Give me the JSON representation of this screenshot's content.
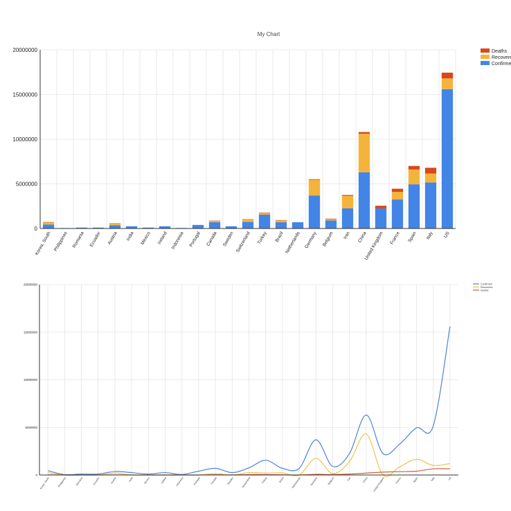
{
  "chart_data": [
    {
      "type": "bar",
      "stacked": true,
      "title": "My Chart",
      "categories": [
        "Korea, South",
        "Philippines",
        "Romania",
        "Ecuador",
        "Austria",
        "India",
        "Mexico",
        "Ireland",
        "Indonesia",
        "Portugal",
        "Canada",
        "Sweden",
        "Switzerland",
        "Turkey",
        "Brazil",
        "Netherlands",
        "Germany",
        "Belgium",
        "Iran",
        "China",
        "United Kingdom",
        "France",
        "Spain",
        "Italy",
        "US"
      ],
      "series": [
        {
          "name": "Confirmed",
          "color": "#4285e6",
          "values": [
            450000,
            50000,
            100000,
            100000,
            370000,
            250000,
            100000,
            250000,
            60000,
            400000,
            700000,
            250000,
            750000,
            1550000,
            700000,
            700000,
            3700000,
            900000,
            2250000,
            6300000,
            2250000,
            3250000,
            4950000,
            5150000,
            15600000
          ]
        },
        {
          "name": "Recovered",
          "color": "#f4b43b",
          "values": [
            250000,
            0,
            0,
            0,
            200000,
            0,
            0,
            0,
            0,
            0,
            150000,
            0,
            250000,
            200000,
            220000,
            0,
            1750000,
            150000,
            1400000,
            4300000,
            0,
            850000,
            1650000,
            1000000,
            1200000
          ]
        },
        {
          "name": "Deaths",
          "color": "#d9481c",
          "values": [
            20000,
            0,
            0,
            0,
            10000,
            0,
            0,
            0,
            0,
            0,
            30000,
            0,
            40000,
            40000,
            20000,
            0,
            70000,
            50000,
            100000,
            200000,
            300000,
            350000,
            400000,
            650000,
            650000
          ]
        }
      ],
      "ylim": [
        0,
        20000000
      ],
      "yticks": [
        "0",
        "5000000",
        "10000000",
        "15000000",
        "20000000"
      ],
      "legend": [
        "Deaths",
        "Recovered",
        "Confirmed"
      ],
      "legend_position": "top-right",
      "grid": true
    },
    {
      "type": "line",
      "smooth": true,
      "categories": [
        "Korea, South",
        "Philippines",
        "Romania",
        "Ecuador",
        "Austria",
        "India",
        "Mexico",
        "Ireland",
        "Indonesia",
        "Portugal",
        "Canada",
        "Sweden",
        "Switzerland",
        "Turkey",
        "Brazil",
        "Netherlands",
        "Germany",
        "Belgium",
        "Iran",
        "China",
        "United Kingdom",
        "France",
        "Spain",
        "Italy",
        "US"
      ],
      "series": [
        {
          "name": "Confirmed",
          "color": "#4a84d6",
          "values": [
            450000,
            50000,
            100000,
            100000,
            370000,
            250000,
            100000,
            250000,
            60000,
            400000,
            700000,
            250000,
            750000,
            1550000,
            700000,
            700000,
            3700000,
            900000,
            2250000,
            6300000,
            2250000,
            3250000,
            4950000,
            5150000,
            15600000
          ]
        },
        {
          "name": "Recovered",
          "color": "#f1c04a",
          "values": [
            250000,
            0,
            0,
            0,
            200000,
            0,
            0,
            0,
            0,
            0,
            150000,
            0,
            250000,
            200000,
            220000,
            0,
            1750000,
            150000,
            1400000,
            4300000,
            0,
            850000,
            1650000,
            1000000,
            1200000
          ]
        },
        {
          "name": "Deaths",
          "color": "#d65a3a",
          "values": [
            20000,
            0,
            0,
            0,
            10000,
            0,
            0,
            0,
            0,
            0,
            30000,
            0,
            40000,
            40000,
            20000,
            0,
            70000,
            50000,
            100000,
            200000,
            300000,
            350000,
            400000,
            650000,
            650000
          ]
        }
      ],
      "ylim": [
        0,
        20000000
      ],
      "yticks": [
        "0",
        "5000000",
        "10000000",
        "15000000",
        "20000000"
      ],
      "legend": [
        "Confirmed",
        "Recovered",
        "Deaths"
      ],
      "legend_position": "top-right",
      "grid": true
    }
  ]
}
